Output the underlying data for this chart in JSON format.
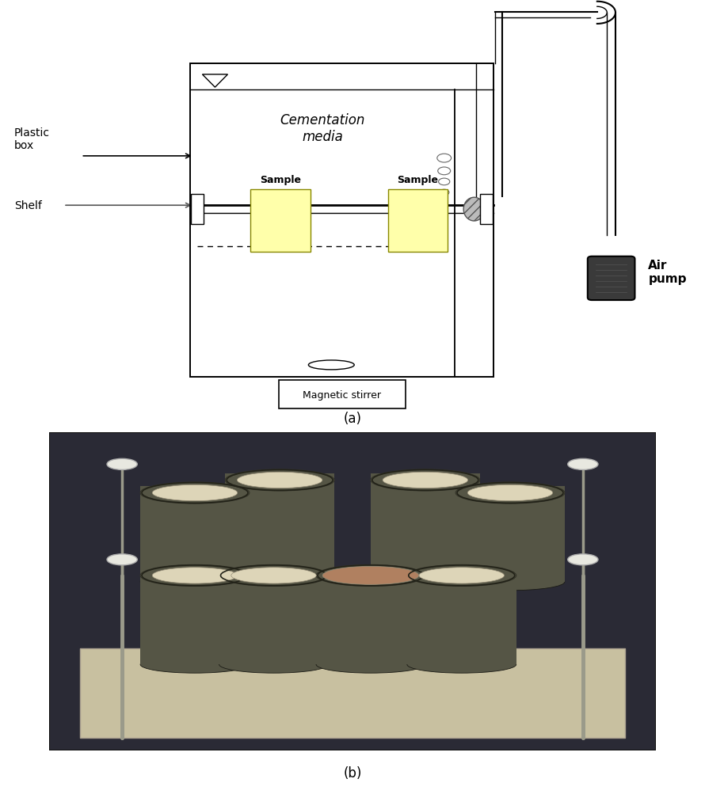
{
  "fig_width": 8.9,
  "fig_height": 10.04,
  "bg_color": "#ffffff",
  "label_a": "(a)",
  "label_b": "(b)",
  "schematic": {
    "cementation_label": "Cementation\nmedia",
    "plastic_box_label": "Plastic\nbox",
    "shelf_label": "Shelf",
    "magnetic_stirrer_label": "Magnetic stirrer",
    "air_pump_label": "Air\npump",
    "sample_label": "Sample",
    "sample_color": "#ffffaa",
    "sample_edge_color": "#888800"
  },
  "photo": {
    "bg_color": "#2a2a35",
    "platform_color": "#c8c0a0",
    "cylinder_outer": "#555545",
    "cylinder_inner": "#e0d8c0",
    "cylinder_top_normal": "#ddd5b8",
    "cylinder_top_brown": "#b08060",
    "rod_color": "#aaaaaa",
    "bolt_color": "#dddddd"
  }
}
